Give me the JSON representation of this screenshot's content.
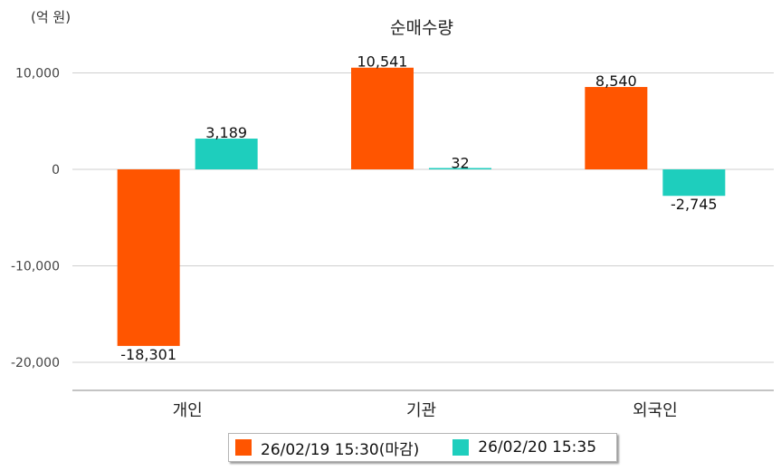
{
  "chart_data": {
    "type": "bar",
    "title": "순매수량",
    "unit_label": "(억 원)",
    "categories": [
      "개인",
      "기관",
      "외국인"
    ],
    "series": [
      {
        "name": "26/02/19 15:30(마감)",
        "color": "#ff5500",
        "values": [
          -18301,
          10541,
          8540
        ],
        "labels": [
          "-18,301",
          "10,541",
          "8,540"
        ]
      },
      {
        "name": "26/02/20 15:35",
        "color": "#1ecebd",
        "values": [
          3189,
          32,
          -2745
        ],
        "labels": [
          "3,189",
          "32",
          "-2,745"
        ]
      }
    ],
    "yticks": [
      10000,
      0,
      -10000,
      -20000
    ],
    "ytick_labels": [
      "10,000",
      "0",
      "-10,000",
      "-20,000"
    ],
    "ylim": [
      -23000,
      12000
    ],
    "grid": true,
    "legend_position": "bottom"
  }
}
